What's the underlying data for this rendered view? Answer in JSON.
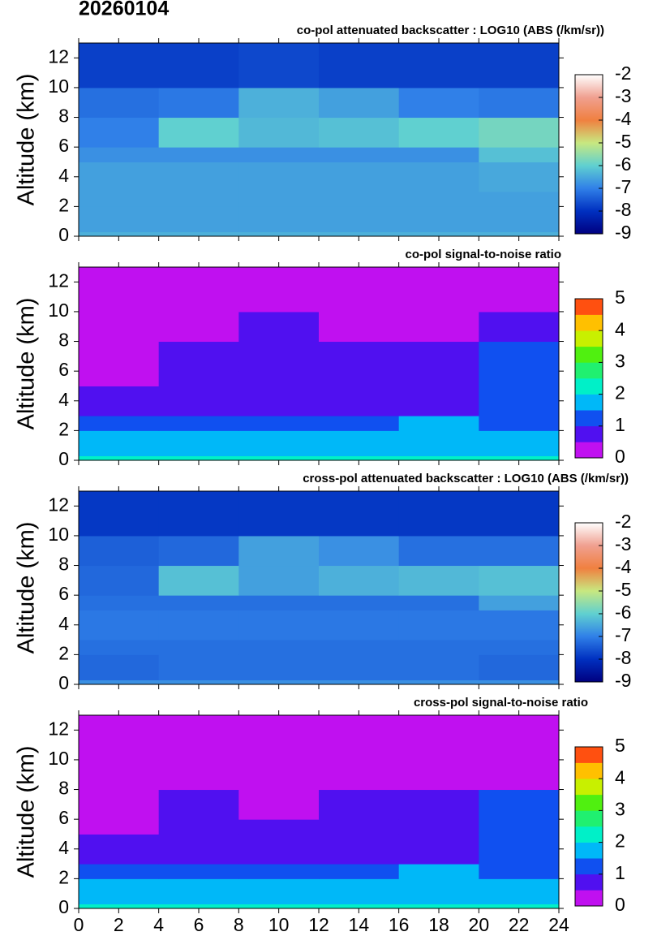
{
  "title": "20260104",
  "chart_data": [
    {
      "type": "heatmap",
      "title": "co-pol attenuated backscatter : LOG10 (ABS (/km/sr))",
      "ylabel": "Altitude (km)",
      "xlim": [
        0,
        24
      ],
      "xticks": [
        0,
        2,
        4,
        6,
        8,
        10,
        12,
        14,
        16,
        18,
        20,
        22,
        24
      ],
      "xtick_labels_shown": false,
      "ylim": [
        0,
        13
      ],
      "yticks": [
        0,
        2,
        4,
        6,
        8,
        10,
        12
      ],
      "xbins": [
        0,
        4,
        8,
        12,
        16,
        20,
        24
      ],
      "ybins": [
        0,
        0.3,
        2,
        3,
        5,
        6,
        8,
        10,
        13
      ],
      "z": [
        [
          -6.4,
          -6.4,
          -6.4,
          -6.4,
          -6.4,
          -6.4
        ],
        [
          -6.6,
          -6.6,
          -6.6,
          -6.6,
          -6.6,
          -6.6
        ],
        [
          -6.6,
          -6.6,
          -6.6,
          -6.6,
          -6.6,
          -6.6
        ],
        [
          -6.6,
          -6.6,
          -6.6,
          -6.6,
          -6.6,
          -6.5
        ],
        [
          -6.8,
          -6.8,
          -6.8,
          -6.8,
          -6.8,
          -6.2
        ],
        [
          -7.0,
          -6.0,
          -6.3,
          -6.2,
          -6.0,
          -5.8
        ],
        [
          -7.2,
          -7.1,
          -6.4,
          -6.6,
          -7.0,
          -7.1
        ],
        [
          -7.8,
          -7.8,
          -7.7,
          -7.8,
          -7.8,
          -7.8
        ]
      ],
      "colorbar": {
        "clim": [
          -9,
          -2
        ],
        "ticks": [
          -2,
          -3,
          -4,
          -5,
          -6,
          -7,
          -8,
          -9
        ],
        "discrete": false,
        "colors": [
          "#000080",
          "#0030c0",
          "#3080e8",
          "#60d0d0",
          "#c8e880",
          "#f08040",
          "#f0a090",
          "#ffffff"
        ]
      }
    },
    {
      "type": "heatmap",
      "title": "co-pol signal-to-noise ratio",
      "ylabel": "Altitude (km)",
      "xlim": [
        0,
        24
      ],
      "xticks": [
        0,
        2,
        4,
        6,
        8,
        10,
        12,
        14,
        16,
        18,
        20,
        22,
        24
      ],
      "xtick_labels_shown": false,
      "ylim": [
        0,
        13
      ],
      "yticks": [
        0,
        2,
        4,
        6,
        8,
        10,
        12
      ],
      "xbins": [
        0,
        4,
        8,
        12,
        16,
        20,
        24
      ],
      "ybins": [
        0,
        0.3,
        2,
        3,
        5,
        6,
        8,
        10,
        13
      ],
      "z": [
        [
          2.3,
          2.3,
          2.3,
          2.3,
          2.3,
          2.3
        ],
        [
          1.8,
          1.8,
          1.8,
          1.8,
          1.8,
          1.8
        ],
        [
          1.3,
          1.2,
          1.3,
          1.3,
          1.5,
          1.3
        ],
        [
          0.9,
          0.9,
          0.9,
          0.9,
          0.9,
          1.0
        ],
        [
          0.4,
          0.6,
          0.6,
          0.7,
          0.8,
          1.1
        ],
        [
          0.3,
          0.6,
          0.5,
          0.6,
          0.8,
          1.2
        ],
        [
          0.2,
          0.2,
          0.5,
          0.4,
          0.4,
          0.5
        ],
        [
          0.1,
          0.1,
          0.1,
          0.1,
          0.1,
          0.1
        ]
      ],
      "colorbar": {
        "clim": [
          0,
          5
        ],
        "ticks": [
          5,
          4,
          3,
          2,
          1,
          0
        ],
        "discrete": true,
        "colors": [
          "#c010f0",
          "#5010f0",
          "#1050f0",
          "#00b8f8",
          "#00f0c8",
          "#20f070",
          "#50f010",
          "#c8f000",
          "#ffc000",
          "#ff5010"
        ]
      }
    },
    {
      "type": "heatmap",
      "title": "cross-pol attenuated backscatter : LOG10 (ABS (/km/sr))",
      "ylabel": "Altitude (km)",
      "xlim": [
        0,
        24
      ],
      "xticks": [
        0,
        2,
        4,
        6,
        8,
        10,
        12,
        14,
        16,
        18,
        20,
        22,
        24
      ],
      "xtick_labels_shown": false,
      "ylim": [
        0,
        13
      ],
      "yticks": [
        0,
        2,
        4,
        6,
        8,
        10,
        12
      ],
      "xbins": [
        0,
        4,
        8,
        12,
        16,
        20,
        24
      ],
      "ybins": [
        0,
        0.3,
        2,
        3,
        5,
        6,
        8,
        10,
        13
      ],
      "z": [
        [
          -6.8,
          -6.8,
          -6.8,
          -6.8,
          -6.8,
          -6.8
        ],
        [
          -7.3,
          -7.2,
          -7.2,
          -7.2,
          -7.2,
          -7.3
        ],
        [
          -7.2,
          -7.2,
          -7.2,
          -7.2,
          -7.2,
          -7.2
        ],
        [
          -7.1,
          -7.1,
          -7.1,
          -7.1,
          -7.1,
          -7.1
        ],
        [
          -7.2,
          -7.2,
          -7.2,
          -7.2,
          -7.2,
          -6.6
        ],
        [
          -7.3,
          -6.2,
          -6.6,
          -6.4,
          -6.3,
          -6.2
        ],
        [
          -7.4,
          -7.3,
          -6.6,
          -6.8,
          -7.2,
          -7.2
        ],
        [
          -7.9,
          -7.9,
          -7.9,
          -7.9,
          -7.9,
          -7.9
        ]
      ],
      "colorbar": {
        "clim": [
          -9,
          -2
        ],
        "ticks": [
          -2,
          -3,
          -4,
          -5,
          -6,
          -7,
          -8,
          -9
        ],
        "discrete": false,
        "colors": [
          "#000080",
          "#0030c0",
          "#3080e8",
          "#60d0d0",
          "#c8e880",
          "#f08040",
          "#f0a090",
          "#ffffff"
        ]
      }
    },
    {
      "type": "heatmap",
      "title": "cross-pol signal-to-noise ratio",
      "ylabel": "Altitude (km)",
      "xlim": [
        0,
        24
      ],
      "xticks": [
        0,
        2,
        4,
        6,
        8,
        10,
        12,
        14,
        16,
        18,
        20,
        22,
        24
      ],
      "xtick_labels_shown": true,
      "ylim": [
        0,
        13
      ],
      "yticks": [
        0,
        2,
        4,
        6,
        8,
        10,
        12
      ],
      "xbins": [
        0,
        4,
        8,
        12,
        16,
        20,
        24
      ],
      "ybins": [
        0,
        0.3,
        2,
        3,
        5,
        6,
        8,
        10,
        13
      ],
      "z": [
        [
          2.2,
          2.2,
          2.2,
          2.2,
          2.2,
          2.2
        ],
        [
          1.8,
          1.8,
          1.8,
          1.8,
          1.8,
          1.8
        ],
        [
          1.3,
          1.2,
          1.2,
          1.3,
          1.5,
          1.3
        ],
        [
          0.9,
          0.9,
          0.9,
          0.9,
          0.9,
          1.0
        ],
        [
          0.4,
          0.6,
          0.6,
          0.6,
          0.7,
          1.0
        ],
        [
          0.3,
          0.5,
          0.4,
          0.6,
          0.7,
          1.1
        ],
        [
          0.2,
          0.2,
          0.4,
          0.4,
          0.4,
          0.4
        ],
        [
          0.1,
          0.1,
          0.1,
          0.1,
          0.1,
          0.1
        ]
      ],
      "colorbar": {
        "clim": [
          0,
          5
        ],
        "ticks": [
          5,
          4,
          3,
          2,
          1,
          0
        ],
        "discrete": true,
        "colors": [
          "#c010f0",
          "#5010f0",
          "#1050f0",
          "#00b8f8",
          "#00f0c8",
          "#20f070",
          "#50f010",
          "#c8f000",
          "#ffc000",
          "#ff5010"
        ]
      }
    }
  ]
}
